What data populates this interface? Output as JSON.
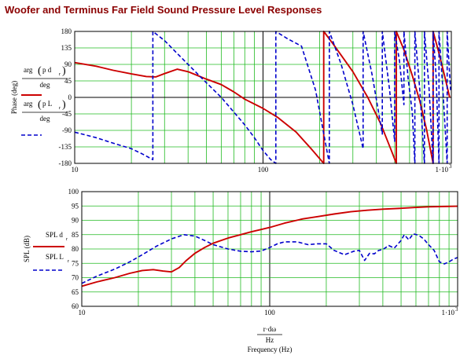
{
  "title": "Woofer and Terminus Far Field Sound Pressure Level Responses",
  "chart_data": [
    {
      "type": "line",
      "x_scale": "log",
      "xlim": [
        10,
        1000
      ],
      "ylim": [
        -180,
        180
      ],
      "x_ticks": [
        "10",
        "100",
        "1·10"
      ],
      "x_tick_exponent": "3",
      "y_ticks": [
        "180",
        "135",
        "90",
        "45",
        "0",
        "-45",
        "-90",
        "-135",
        "-180"
      ],
      "y_tick_values": [
        180,
        135,
        90,
        45,
        0,
        -45,
        -90,
        -135,
        -180
      ],
      "ylabel": "Phase (deg)",
      "xlabel": "",
      "grid": true,
      "legend": {
        "series1_num_prefix": "arg",
        "series1_num_body": "p d",
        "series1_num_sub": "r",
        "series1_den": "deg",
        "series2_num_prefix": "arg",
        "series2_num_body": "p L",
        "series2_num_sub": "r",
        "series2_den": "deg"
      },
      "series": [
        {
          "color": "#cc0000",
          "style": "solid",
          "x": [
            10,
            13,
            16,
            20,
            24,
            27,
            30,
            35,
            40,
            50,
            60,
            70,
            80,
            100,
            120,
            150,
            180,
            210,
            210.01,
            240,
            300,
            360,
            420,
            480,
            510,
            510.01,
            560,
            620,
            680,
            740,
            800,
            800.01,
            850,
            920,
            980
          ],
          "y": [
            95,
            85,
            74,
            64,
            57,
            56,
            65,
            77,
            70,
            50,
            35,
            15,
            -5,
            -30,
            -55,
            -95,
            -140,
            -180,
            180,
            140,
            70,
            0,
            -70,
            -145,
            -180,
            180,
            130,
            60,
            -10,
            -90,
            -180,
            180,
            130,
            60,
            0
          ]
        },
        {
          "color": "#0000cc",
          "style": "dashed",
          "x": [
            10,
            13,
            16,
            20,
            23,
            26,
            26.01,
            30,
            35,
            40,
            50,
            60,
            70,
            80,
            90,
            100,
            110,
            117,
            117.01,
            135,
            160,
            190,
            225,
            225.01,
            260,
            300,
            340,
            340.01,
            380,
            430,
            430.01,
            470,
            500,
            500.01,
            530,
            560,
            560.01,
            590,
            620,
            640,
            640.01,
            680,
            720,
            720.01,
            760,
            800,
            800.01,
            830,
            860,
            860.01,
            900,
            950,
            950.01,
            990
          ],
          "y": [
            -95,
            -110,
            -125,
            -140,
            -155,
            -170,
            180,
            155,
            120,
            90,
            40,
            0,
            -40,
            -75,
            -110,
            -145,
            -170,
            -180,
            180,
            160,
            140,
            20,
            -180,
            180,
            90,
            -20,
            -140,
            180,
            60,
            -100,
            180,
            20,
            -120,
            180,
            100,
            -20,
            180,
            50,
            -40,
            -180,
            180,
            20,
            -180,
            180,
            30,
            -180,
            180,
            60,
            -180,
            180,
            30,
            -180,
            180,
            20
          ]
        }
      ]
    },
    {
      "type": "line",
      "x_scale": "log",
      "xlim": [
        10,
        1000
      ],
      "ylim": [
        60,
        100
      ],
      "x_ticks": [
        "10",
        "100",
        "1·10"
      ],
      "x_tick_exponent": "3",
      "y_ticks": [
        "100",
        "95",
        "90",
        "85",
        "80",
        "75",
        "70",
        "65",
        "60"
      ],
      "y_tick_values": [
        100,
        95,
        90,
        85,
        80,
        75,
        70,
        65,
        60
      ],
      "ylabel": "SPL (dB)",
      "xlabel_num": "r·dω",
      "xlabel_den": "Hz",
      "xlabel": "Frequency (Hz)",
      "grid": true,
      "legend": {
        "series1_label": "SPL d",
        "series1_sub": "r",
        "series2_label": "SPL L",
        "series2_sub": "r"
      },
      "series": [
        {
          "color": "#cc0000",
          "style": "solid",
          "x": [
            10,
            12,
            15,
            18,
            21,
            24,
            27,
            30,
            33,
            36,
            40,
            45,
            50,
            60,
            70,
            80,
            90,
            100,
            120,
            150,
            180,
            220,
            270,
            330,
            400,
            500,
            600,
            700,
            800,
            1000
          ],
          "y": [
            67,
            68.5,
            70,
            71.5,
            72.5,
            72.8,
            72.3,
            72,
            73.5,
            76,
            78.5,
            80.5,
            82,
            83.8,
            85,
            86,
            86.8,
            87.5,
            89,
            90.5,
            91.3,
            92.2,
            93,
            93.5,
            93.9,
            94.2,
            94.5,
            94.7,
            94.8,
            94.9
          ]
        },
        {
          "color": "#0000cc",
          "style": "dashed",
          "x": [
            10,
            12,
            15,
            18,
            21,
            25,
            30,
            35,
            40,
            45,
            50,
            60,
            70,
            80,
            90,
            100,
            110,
            120,
            140,
            160,
            180,
            200,
            220,
            250,
            280,
            300,
            320,
            340,
            360,
            380,
            400,
            430,
            460,
            500,
            520,
            550,
            580,
            620,
            660,
            700,
            750,
            800,
            850,
            900,
            950,
            1000
          ],
          "y": [
            68,
            70.5,
            73,
            75.5,
            78,
            81,
            83.5,
            85,
            84.5,
            83,
            81.5,
            80,
            79.2,
            79,
            79.3,
            80.5,
            81.8,
            82.5,
            82.5,
            81.5,
            81.8,
            81.8,
            79.5,
            78,
            79.2,
            79.5,
            76,
            78.5,
            78.3,
            79.5,
            79.8,
            81.2,
            80.3,
            83,
            85,
            83.2,
            85.3,
            84.8,
            83.5,
            81.5,
            79.5,
            75.5,
            74.8,
            75.5,
            76.5,
            77
          ]
        }
      ]
    }
  ]
}
